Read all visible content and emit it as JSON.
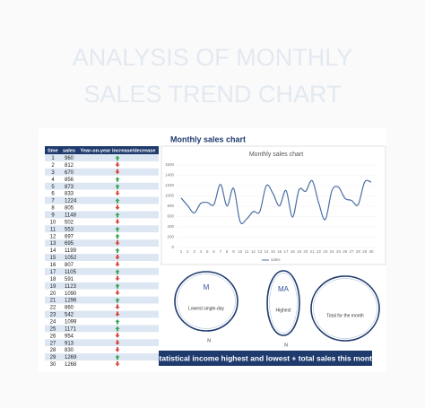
{
  "header": {
    "title_line1": "ANALYSIS OF MONTHLY",
    "title_line2": "SALES TREND CHART"
  },
  "table": {
    "columns": [
      "time",
      "sales",
      "Year-on-year increase/decrease"
    ],
    "rows": [
      {
        "time": 1,
        "sales": 960,
        "trend": "up"
      },
      {
        "time": 2,
        "sales": 812,
        "trend": "down"
      },
      {
        "time": 3,
        "sales": 670,
        "trend": "down"
      },
      {
        "time": 4,
        "sales": 856,
        "trend": "up"
      },
      {
        "time": 5,
        "sales": 873,
        "trend": "up"
      },
      {
        "time": 6,
        "sales": 833,
        "trend": "down"
      },
      {
        "time": 7,
        "sales": 1224,
        "trend": "up"
      },
      {
        "time": 8,
        "sales": 805,
        "trend": "down"
      },
      {
        "time": 9,
        "sales": 1148,
        "trend": "up"
      },
      {
        "time": 10,
        "sales": 502,
        "trend": "down"
      },
      {
        "time": 11,
        "sales": 553,
        "trend": "up"
      },
      {
        "time": 12,
        "sales": 697,
        "trend": "up"
      },
      {
        "time": 13,
        "sales": 695,
        "trend": "down"
      },
      {
        "time": 14,
        "sales": 1199,
        "trend": "up"
      },
      {
        "time": 15,
        "sales": 1052,
        "trend": "down"
      },
      {
        "time": 16,
        "sales": 807,
        "trend": "down"
      },
      {
        "time": 17,
        "sales": 1105,
        "trend": "up"
      },
      {
        "time": 18,
        "sales": 591,
        "trend": "down"
      },
      {
        "time": 19,
        "sales": 1123,
        "trend": "up"
      },
      {
        "time": 20,
        "sales": 1090,
        "trend": "down"
      },
      {
        "time": 21,
        "sales": 1296,
        "trend": "up"
      },
      {
        "time": 22,
        "sales": 860,
        "trend": "down"
      },
      {
        "time": 23,
        "sales": 542,
        "trend": "down"
      },
      {
        "time": 24,
        "sales": 1099,
        "trend": "up"
      },
      {
        "time": 25,
        "sales": 1171,
        "trend": "up"
      },
      {
        "time": 26,
        "sales": 954,
        "trend": "down"
      },
      {
        "time": 27,
        "sales": 913,
        "trend": "down"
      },
      {
        "time": 28,
        "sales": 830,
        "trend": "down"
      },
      {
        "time": 29,
        "sales": 1269,
        "trend": "up"
      },
      {
        "time": 30,
        "sales": 1268,
        "trend": "down"
      }
    ]
  },
  "chart": {
    "type": "line",
    "heading": "Monthly sales chart",
    "title": "Monthly sales chart",
    "legend": "sales",
    "color": "#4a6fa5",
    "ylim": [
      0,
      1600
    ],
    "yticks": [
      0,
      200,
      400,
      600,
      800,
      1000,
      1200,
      1400,
      1600
    ]
  },
  "stats": [
    {
      "symbol": "M",
      "label": "Lowest single-day",
      "note": "N"
    },
    {
      "symbol": "MA",
      "label": "Highest",
      "note": "N"
    },
    {
      "label": "Total for the month"
    }
  ],
  "banner": "Statistical income highest and lowest + total sales this month"
}
